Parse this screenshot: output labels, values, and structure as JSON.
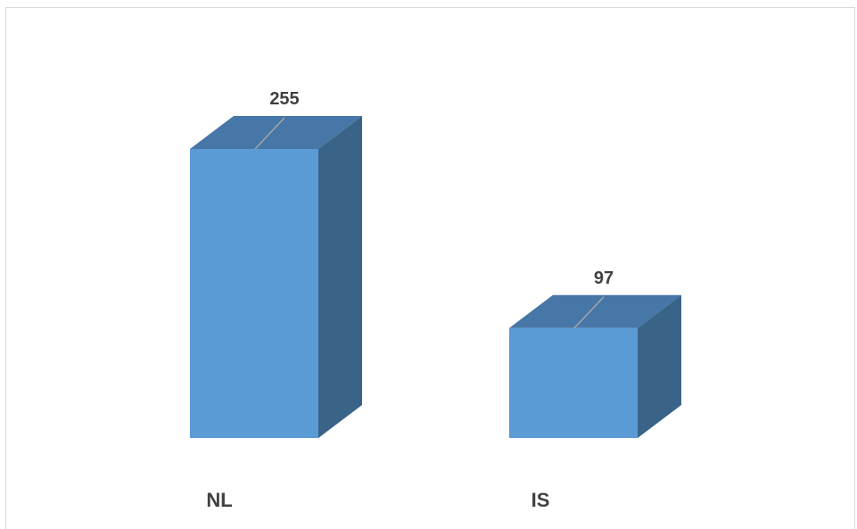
{
  "chart_data": {
    "type": "bar",
    "style": "3d-column",
    "categories": [
      "NL",
      "IS"
    ],
    "values": [
      255,
      97
    ],
    "data_labels": [
      "255",
      "97"
    ],
    "ylim": [
      0,
      255
    ],
    "grid": false,
    "legend": "none",
    "title": "",
    "xlabel": "",
    "ylabel": ""
  },
  "colors": {
    "front": "#5b9bd5",
    "top": "#4677a7",
    "side": "#396488",
    "leader": "#a6a6a6",
    "text": "#404040",
    "frame": "#d9d9d9"
  }
}
